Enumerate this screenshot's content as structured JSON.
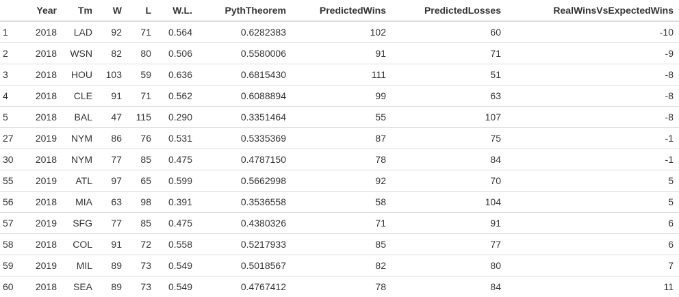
{
  "table": {
    "headers": [
      "",
      "Year",
      "Tm",
      "W",
      "L",
      "W.L.",
      "PythTheorem",
      "PredictedWins",
      "PredictedLosses",
      "RealWinsVsExpectedWins"
    ],
    "rows": [
      [
        "1",
        "2018",
        "LAD",
        "92",
        "71",
        "0.564",
        "0.6282383",
        "102",
        "60",
        "-10"
      ],
      [
        "2",
        "2018",
        "WSN",
        "82",
        "80",
        "0.506",
        "0.5580006",
        "91",
        "71",
        "-9"
      ],
      [
        "3",
        "2018",
        "HOU",
        "103",
        "59",
        "0.636",
        "0.6815430",
        "111",
        "51",
        "-8"
      ],
      [
        "4",
        "2018",
        "CLE",
        "91",
        "71",
        "0.562",
        "0.6088894",
        "99",
        "63",
        "-8"
      ],
      [
        "5",
        "2018",
        "BAL",
        "47",
        "115",
        "0.290",
        "0.3351464",
        "55",
        "107",
        "-8"
      ],
      [
        "27",
        "2019",
        "NYM",
        "86",
        "76",
        "0.531",
        "0.5335369",
        "87",
        "75",
        "-1"
      ],
      [
        "30",
        "2018",
        "NYM",
        "77",
        "85",
        "0.475",
        "0.4787150",
        "78",
        "84",
        "-1"
      ],
      [
        "55",
        "2019",
        "ATL",
        "97",
        "65",
        "0.599",
        "0.5662998",
        "92",
        "70",
        "5"
      ],
      [
        "56",
        "2018",
        "MIA",
        "63",
        "98",
        "0.391",
        "0.3536558",
        "58",
        "104",
        "5"
      ],
      [
        "57",
        "2019",
        "SFG",
        "77",
        "85",
        "0.475",
        "0.4380326",
        "71",
        "91",
        "6"
      ],
      [
        "58",
        "2018",
        "COL",
        "91",
        "72",
        "0.558",
        "0.5217933",
        "85",
        "77",
        "6"
      ],
      [
        "59",
        "2019",
        "MIL",
        "89",
        "73",
        "0.549",
        "0.5018567",
        "82",
        "80",
        "7"
      ],
      [
        "60",
        "2018",
        "SEA",
        "89",
        "73",
        "0.549",
        "0.4767412",
        "78",
        "84",
        "11"
      ]
    ]
  }
}
